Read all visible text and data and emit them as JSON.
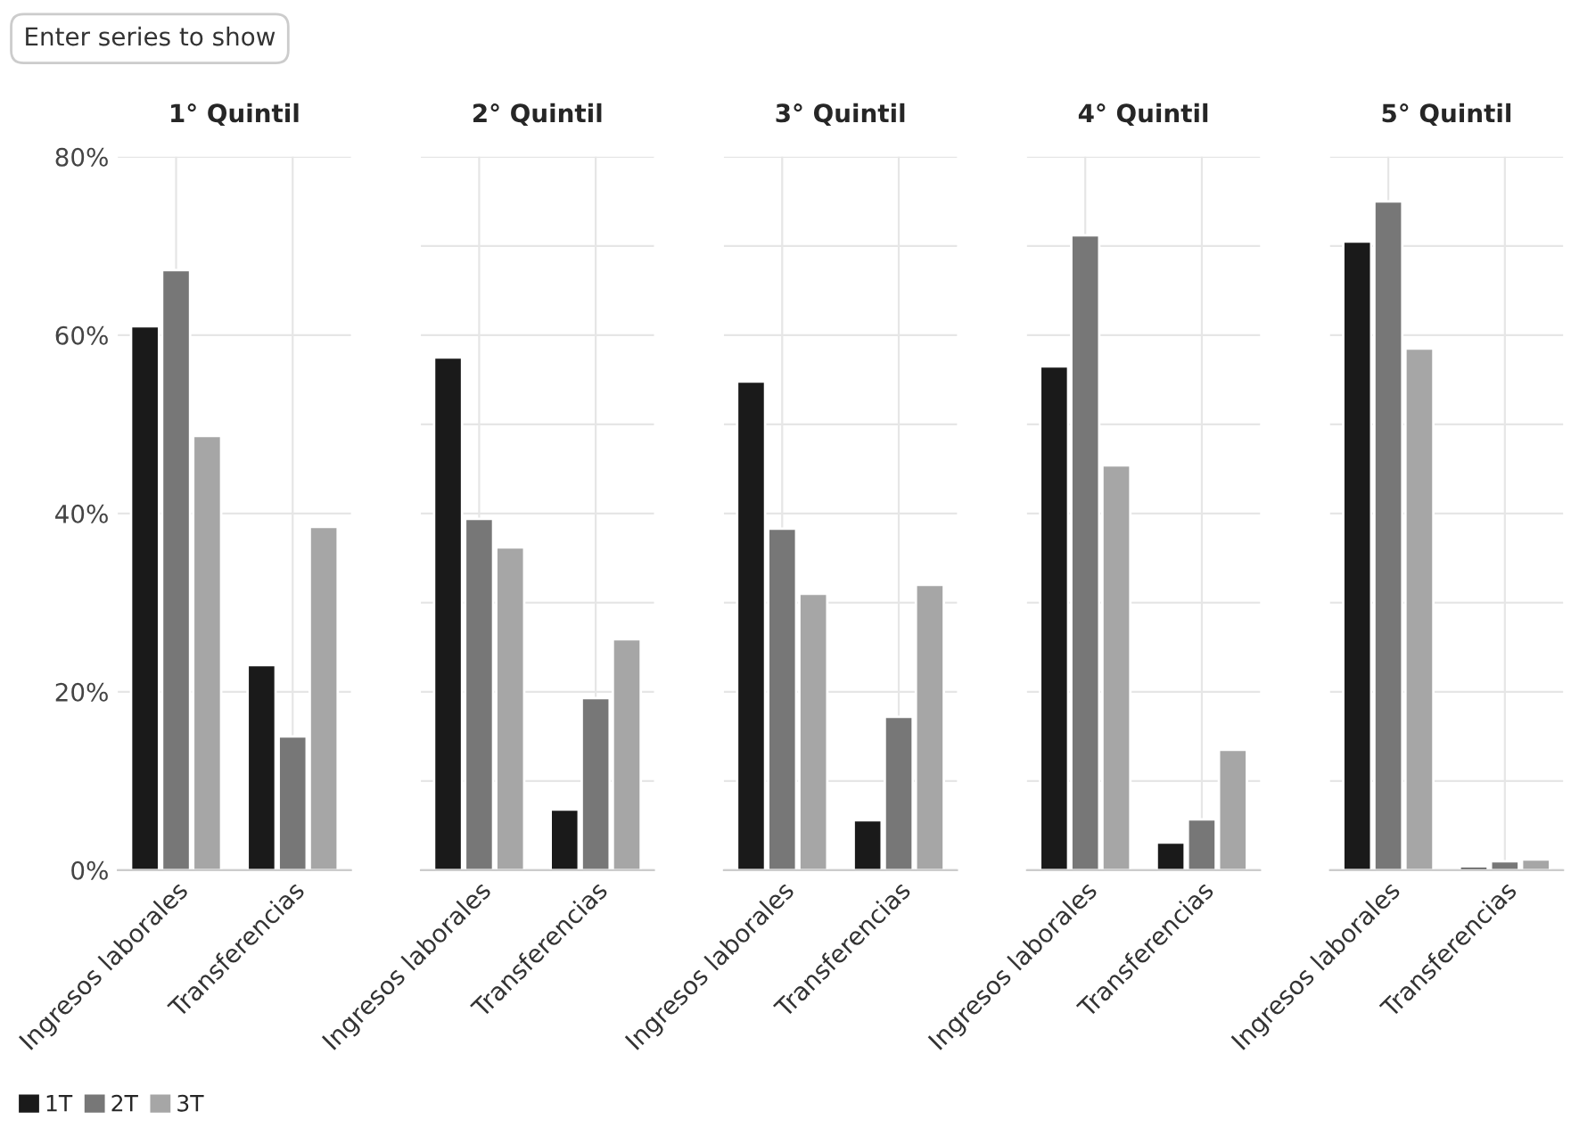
{
  "chart_data": [
    {
      "type": "bar",
      "title": "1° Quintil",
      "categories": [
        "Ingresos laborales",
        "Transferencias"
      ],
      "series": [
        {
          "name": "1T",
          "color": "#1a1a1a",
          "values": [
            61,
            23
          ]
        },
        {
          "name": "2T",
          "color": "#777777",
          "values": [
            67.3,
            15
          ]
        },
        {
          "name": "3T",
          "color": "#a6a6a6",
          "values": [
            48.7,
            38.5
          ]
        }
      ],
      "ylim": [
        0,
        80
      ],
      "yticks": [
        {
          "value": 0,
          "label": "0%"
        },
        {
          "value": 20,
          "label": "20%"
        },
        {
          "value": 40,
          "label": "40%"
        },
        {
          "value": 60,
          "label": "60%"
        },
        {
          "value": 80,
          "label": "80%"
        }
      ],
      "grid": true,
      "legend": "bottom left",
      "annotations": [
        "Enter series to show"
      ]
    },
    {
      "type": "bar",
      "title": "2° Quintil",
      "categories": [
        "Ingresos laborales",
        "Transferencias"
      ],
      "series": [
        {
          "color": "#1a1a1a",
          "values": [
            57.5,
            6.8
          ]
        },
        {
          "color": "#777777",
          "values": [
            39.4,
            19.3
          ]
        },
        {
          "color": "#a6a6a6",
          "values": [
            36.2,
            25.9
          ]
        }
      ],
      "ylim": [
        0,
        80
      ],
      "tick_labels": "x",
      "grid": true
    },
    {
      "type": "bar",
      "title": "3° Quintil",
      "categories": [
        "Ingresos laborales",
        "Transferencias"
      ],
      "series": [
        {
          "color": "#1a1a1a",
          "values": [
            54.8,
            5.6
          ]
        },
        {
          "color": "#777777",
          "values": [
            38.3,
            17.2
          ]
        },
        {
          "color": "#a6a6a6",
          "values": [
            31,
            32
          ]
        }
      ],
      "ylim": [
        0,
        80
      ],
      "tick_labels": "x",
      "grid": true
    },
    {
      "type": "bar",
      "title": "4° Quintil",
      "categories": [
        "Ingresos laborales",
        "Transferencias"
      ],
      "series": [
        {
          "color": "#1a1a1a",
          "values": [
            56.5,
            3.1
          ]
        },
        {
          "color": "#777777",
          "values": [
            71.2,
            5.7
          ]
        },
        {
          "color": "#a6a6a6",
          "values": [
            45.4,
            13.5
          ]
        }
      ],
      "ylim": [
        0,
        80
      ],
      "tick_labels": "x",
      "grid": true
    },
    {
      "type": "bar",
      "title": "5° Quintil",
      "categories": [
        "Ingresos laborales",
        "Transferencias"
      ],
      "series": [
        {
          "color": "#1a1a1a",
          "values": [
            70.5,
            0.4
          ]
        },
        {
          "color": "#777777",
          "values": [
            75,
            1
          ]
        },
        {
          "color": "#a6a6a6",
          "values": [
            58.5,
            1.2
          ]
        }
      ],
      "ylim": [
        0,
        80
      ],
      "tick_labels": "x",
      "grid": true
    }
  ]
}
